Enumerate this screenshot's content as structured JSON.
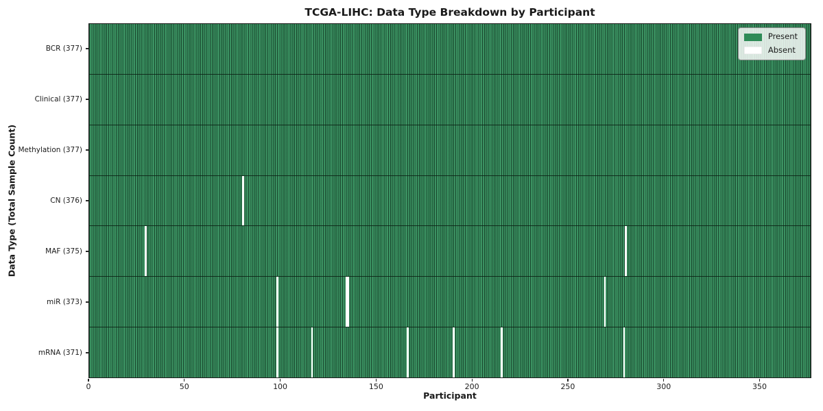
{
  "chart_data": {
    "type": "heatmap",
    "title": "TCGA-LIHC: Data Type Breakdown by Participant",
    "xlabel": "Participant",
    "ylabel": "Data Type (Total Sample Count)",
    "x_range": [
      0,
      377
    ],
    "x_ticks": [
      0,
      50,
      100,
      150,
      200,
      250,
      300,
      350
    ],
    "n_participants": 377,
    "grid": "cell-edges",
    "colors": {
      "present": "#2e8b57",
      "absent": "#ffffff",
      "cell_edge": "#14361f",
      "spine": "#1c1c1c"
    },
    "legend": {
      "position": "upper right",
      "entries": [
        {
          "label": "Present",
          "color": "#2e8b57"
        },
        {
          "label": "Absent",
          "color": "#ffffff"
        }
      ]
    },
    "rows": [
      {
        "name": "BCR",
        "label": "BCR (377)",
        "total": 377,
        "absent_participants": []
      },
      {
        "name": "Clinical",
        "label": "Clinical (377)",
        "total": 377,
        "absent_participants": []
      },
      {
        "name": "Methylation",
        "label": "Methylation (377)",
        "total": 377,
        "absent_participants": []
      },
      {
        "name": "CN",
        "label": "CN (376)",
        "total": 376,
        "absent_participants": [
          80
        ]
      },
      {
        "name": "MAF",
        "label": "MAF (375)",
        "total": 375,
        "absent_participants": [
          29,
          280
        ]
      },
      {
        "name": "miR",
        "label": "miR (373)",
        "total": 373,
        "absent_participants": [
          98,
          134,
          135,
          269
        ]
      },
      {
        "name": "mRNA",
        "label": "mRNA (371)",
        "total": 371,
        "absent_participants": [
          98,
          116,
          166,
          190,
          215,
          279
        ]
      }
    ]
  }
}
